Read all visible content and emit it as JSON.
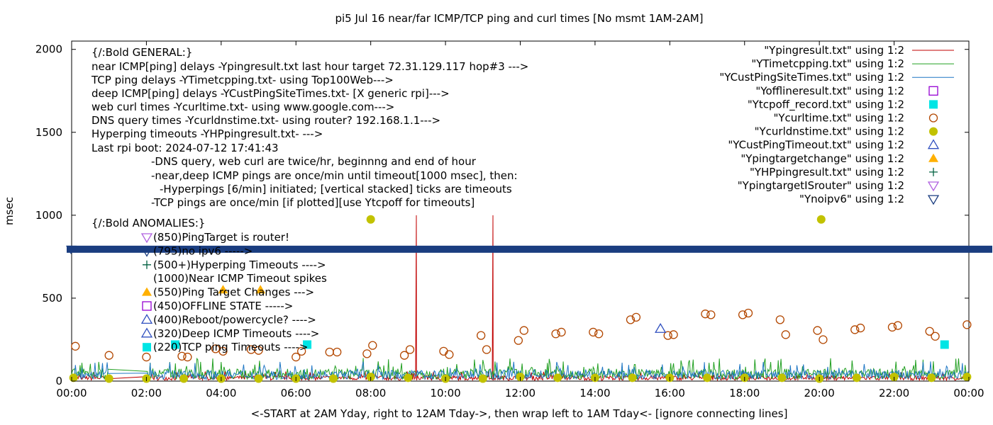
{
  "chart_data": {
    "type": "scatter",
    "title": "pi5 Jul 16  near/far ICMP/TCP ping and curl times [No msmt 1AM-2AM]",
    "xlabel": "<-START at 2AM Yday, right to 12AM Tday->, then wrap left to 1AM Tday<- [ignore connecting lines]",
    "ylabel": "msec",
    "xlim": [
      0,
      24
    ],
    "ylim": [
      0,
      2050
    ],
    "x_tick_labels": [
      "00:00",
      "02:00",
      "04:00",
      "06:00",
      "08:00",
      "10:00",
      "12:00",
      "14:00",
      "16:00",
      "18:00",
      "20:00",
      "22:00",
      "00:00"
    ],
    "x_ticks": [
      0,
      2,
      4,
      6,
      8,
      10,
      12,
      14,
      16,
      18,
      20,
      22,
      24
    ],
    "y_tick_labels": [
      "0",
      "500",
      "1000",
      "1500",
      "2000"
    ],
    "y_ticks": [
      0,
      500,
      1000,
      1500,
      2000
    ],
    "grid": false,
    "legend_position": "top-right",
    "legend": [
      {
        "label": "\"Ypingresult.txt\" using 1:2",
        "style": "line",
        "color": "#c00000"
      },
      {
        "label": "\"YTimetcpping.txt\" using 1:2",
        "style": "line",
        "color": "#22a022"
      },
      {
        "label": "\"YCustPingSiteTimes.txt\" using 1:2",
        "style": "line",
        "color": "#1f77c4"
      },
      {
        "label": "\"Yofflineresult.txt\" using 1:2",
        "style": "open-square",
        "color": "#9400d3"
      },
      {
        "label": "\"Ytcpoff_record.txt\" using 1:2",
        "style": "filled-square",
        "color": "#00e5e5"
      },
      {
        "label": "\"Ycurltime.txt\" using 1:2",
        "style": "open-circle",
        "color": "#b34700"
      },
      {
        "label": "\"Ycurldnstime.txt\" using 1:2",
        "style": "filled-circle",
        "color": "#c2c200"
      },
      {
        "label": "\"YCustPingTimeout.txt\" using 1:2",
        "style": "open-triangle",
        "color": "#3050c0"
      },
      {
        "label": "\"Ypingtargetchange\" using 1:2",
        "style": "filled-triangle",
        "color": "#ffb000"
      },
      {
        "label": "\"YHPpingresult.txt\" using 1:2",
        "style": "plus",
        "color": "#006040"
      },
      {
        "label": "\"YpingtargetISrouter\" using 1:2",
        "style": "open-triangle-down",
        "color": "#b060e0"
      },
      {
        "label": "\"Ynoipv6\" using 1:2",
        "style": "open-triangle-down",
        "color": "#1a3d80"
      }
    ],
    "notes": [
      "{/:Bold GENERAL:}",
      "near ICMP[ping] delays -Ypingresult.txt last hour target 72.31.129.117 hop#3 --->",
      "TCP ping delays -YTimetcpping.txt- using Top100Web--->",
      "deep ICMP[ping] delays -YCustPingSiteTimes.txt- [X generic rpi]--->",
      "web curl times -Ycurltime.txt- using www.google.com--->",
      "DNS query times -Ycurldnstime.txt- using router? 192.168.1.1--->",
      "Hyperping timeouts -YHPpingresult.txt- --->",
      "Last rpi boot: 2024-07-12 17:41:43",
      "-DNS query, web curl are twice/hr, beginnng and end of hour",
      "-near,deep ICMP pings are once/min until timeout[1000 msec], then:",
      "-Hyperpings [6/min] initiated; [vertical stacked] ticks are timeouts",
      "-TCP pings are once/min [if plotted][use Ytcpoff for timeouts]",
      "{/:Bold ANOMALIES:}"
    ],
    "anomaly_legend": [
      {
        "text": "(850)PingTarget is router!",
        "marker": "open-triangle-down",
        "color": "#b060e0"
      },
      {
        "text": "(795)no ipv6 ----->",
        "marker": "open-triangle-down",
        "color": "#1a3d80"
      },
      {
        "text": "(500+)Hyperping Timeouts ---->",
        "marker": "plus",
        "color": "#006040"
      },
      {
        "text": "(1000)Near ICMP Timeout spikes",
        "marker": "none",
        "color": ""
      },
      {
        "text": "(550)Ping Target Changes --->",
        "marker": "filled-triangle",
        "color": "#ffb000"
      },
      {
        "text": "(450)OFFLINE STATE ----->",
        "marker": "open-square",
        "color": "#9400d3"
      },
      {
        "text": "(400)Reboot/powercycle? ---->",
        "marker": "open-triangle",
        "color": "#3050c0"
      },
      {
        "text": "(320)Deep ICMP Timeouts ---->",
        "marker": "open-triangle",
        "color": "#3050c0"
      },
      {
        "text": "(220)TCP ping Timeouts ---->",
        "marker": "filled-square",
        "color": "#00e5e5"
      }
    ],
    "series": [
      {
        "name": "\"Ypingresult.txt\" using 1:2",
        "type": "line",
        "color": "#c00000",
        "spikes": [
          {
            "x": 9.22,
            "y": 1000
          },
          {
            "x": 11.27,
            "y": 1000
          }
        ],
        "baseline_range": [
          5,
          60
        ]
      },
      {
        "name": "\"YTimetcpping.txt\" using 1:2",
        "type": "line",
        "color": "#22a022",
        "baseline_range": [
          10,
          140
        ]
      },
      {
        "name": "\"YCustPingSiteTimes.txt\" using 1:2",
        "type": "line",
        "color": "#1f77c4",
        "baseline_range": [
          10,
          120
        ]
      },
      {
        "name": "\"Ytcpoff_record.txt\" using 1:2",
        "type": "filled-square",
        "color": "#00e5e5",
        "points": [
          [
            2.77,
            220
          ],
          [
            6.3,
            220
          ],
          [
            23.35,
            220
          ]
        ]
      },
      {
        "name": "\"Ycurltime.txt\" using 1:2",
        "type": "open-circle",
        "color": "#b34700",
        "points": [
          [
            0.1,
            210
          ],
          [
            1.0,
            155
          ],
          [
            2.0,
            145
          ],
          [
            2.95,
            150
          ],
          [
            3.1,
            145
          ],
          [
            3.85,
            195
          ],
          [
            4.05,
            180
          ],
          [
            4.8,
            190
          ],
          [
            5.0,
            185
          ],
          [
            6.0,
            145
          ],
          [
            6.15,
            180
          ],
          [
            6.9,
            175
          ],
          [
            7.1,
            175
          ],
          [
            7.9,
            165
          ],
          [
            8.05,
            215
          ],
          [
            8.9,
            155
          ],
          [
            9.05,
            190
          ],
          [
            9.95,
            180
          ],
          [
            10.1,
            160
          ],
          [
            10.95,
            275
          ],
          [
            11.1,
            190
          ],
          [
            11.95,
            245
          ],
          [
            12.1,
            305
          ],
          [
            12.95,
            285
          ],
          [
            13.1,
            295
          ],
          [
            13.95,
            295
          ],
          [
            14.1,
            285
          ],
          [
            14.95,
            370
          ],
          [
            15.1,
            385
          ],
          [
            15.95,
            275
          ],
          [
            16.1,
            280
          ],
          [
            16.95,
            405
          ],
          [
            17.1,
            400
          ],
          [
            17.95,
            400
          ],
          [
            18.1,
            410
          ],
          [
            18.95,
            370
          ],
          [
            19.1,
            280
          ],
          [
            19.95,
            305
          ],
          [
            20.1,
            250
          ],
          [
            20.95,
            310
          ],
          [
            21.1,
            320
          ],
          [
            21.95,
            325
          ],
          [
            22.1,
            335
          ],
          [
            22.95,
            300
          ],
          [
            23.1,
            270
          ],
          [
            23.95,
            340
          ]
        ]
      },
      {
        "name": "\"Ycurldnstime.txt\" using 1:2",
        "type": "filled-circle",
        "color": "#c2c200",
        "points": [
          [
            8.0,
            975
          ],
          [
            20.05,
            975
          ],
          [
            0.05,
            20
          ],
          [
            1.0,
            15
          ],
          [
            2.0,
            15
          ],
          [
            3.0,
            15
          ],
          [
            4.0,
            15
          ],
          [
            5.0,
            15
          ],
          [
            6.0,
            15
          ],
          [
            7.0,
            15
          ],
          [
            8.0,
            25
          ],
          [
            9.0,
            20
          ],
          [
            10.0,
            15
          ],
          [
            11.0,
            15
          ],
          [
            12.0,
            25
          ],
          [
            13.0,
            20
          ],
          [
            14.0,
            20
          ],
          [
            15.0,
            20
          ],
          [
            16.0,
            20
          ],
          [
            17.0,
            20
          ],
          [
            18.0,
            20
          ],
          [
            19.0,
            20
          ],
          [
            20.0,
            15
          ],
          [
            21.0,
            20
          ],
          [
            22.0,
            25
          ],
          [
            23.0,
            20
          ],
          [
            23.95,
            25
          ]
        ]
      },
      {
        "name": "\"YCustPingTimeout.txt\" using 1:2",
        "type": "open-triangle",
        "color": "#3050c0",
        "points": [
          [
            15.75,
            315
          ]
        ]
      },
      {
        "name": "\"Ypingtargetchange\" using 1:2",
        "type": "filled-triangle",
        "color": "#ffb000",
        "points": [
          [
            4.05,
            550
          ],
          [
            5.05,
            550
          ]
        ]
      },
      {
        "name": "\"Ynoipv6\" using 1:2",
        "type": "open-triangle-down",
        "color": "#1a3d80",
        "band_y": 795
      }
    ]
  }
}
